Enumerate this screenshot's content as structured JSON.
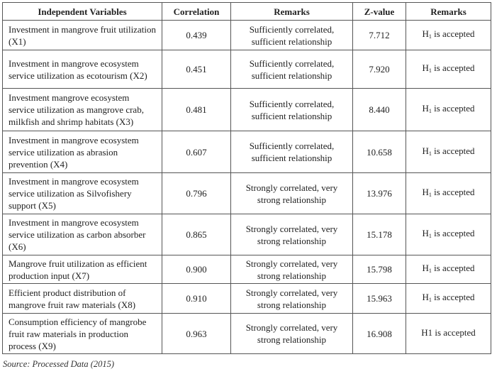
{
  "table": {
    "headers": [
      "Independent Variables",
      "Correlation",
      "Remarks",
      "Z-value",
      "Remarks"
    ],
    "rows": [
      {
        "variable": "Investment in mangrove fruit utilization (X1)",
        "correlation": "0.439",
        "remarks": "Sufficiently correlated, sufficient relationship",
        "z": "7.712",
        "h_base": "H",
        "h_sub": "1",
        "h_rest": " is accepted"
      },
      {
        "variable": "Investment in mangrove ecosystem service utilization as ecotourism (X2)",
        "correlation": "0.451",
        "remarks": "Sufficiently correlated, sufficient relationship",
        "z": "7.920",
        "h_base": "H",
        "h_sub": "1",
        "h_rest": " is accepted"
      },
      {
        "variable": "Investment mangrove ecosystem service utilization as mangrove crab, milkfish and shrimp habitats (X3)",
        "correlation": "0.481",
        "remarks": "Sufficiently correlated, sufficient relationship",
        "z": "8.440",
        "h_base": "H",
        "h_sub": "1",
        "h_rest": " is accepted"
      },
      {
        "variable": "Investment in mangrove ecosystem service utilization as abrasion prevention (X4)",
        "correlation": "0.607",
        "remarks": "Sufficiently correlated, sufficient relationship",
        "z": "10.658",
        "h_base": "H",
        "h_sub": "1",
        "h_rest": " is accepted"
      },
      {
        "variable": "Investment in mangrove ecosystem service utilization as Silvofishery support (X5)",
        "correlation": "0.796",
        "remarks": "Strongly correlated, very strong relationship",
        "z": "13.976",
        "h_base": "H",
        "h_sub": "1",
        "h_rest": " is accepted"
      },
      {
        "variable": "Investment in mangrove ecosystem service utilization as carbon absorber (X6)",
        "correlation": "0.865",
        "remarks": "Strongly correlated, very strong relationship",
        "z": "15.178",
        "h_base": "H",
        "h_sub": "1",
        "h_rest": " is accepted"
      },
      {
        "variable": "Mangrove fruit utilization as efficient production input (X7)",
        "correlation": "0.900",
        "remarks": "Strongly correlated, very strong relationship",
        "z": "15.798",
        "h_base": "H",
        "h_sub": "1",
        "h_rest": " is accepted"
      },
      {
        "variable": "Efficient product distribution of mangrove fruit raw materials (X8)",
        "correlation": "0.910",
        "remarks": "Strongly correlated, very strong relationship",
        "z": "15.963",
        "h_base": "H",
        "h_sub": "1",
        "h_rest": " is accepted"
      },
      {
        "variable": "Consumption efficiency of mangrobe fruit raw materials in production process (X9)",
        "correlation": "0.963",
        "remarks": "Strongly correlated, very strong relationship",
        "z": "16.908",
        "h_base": "H1 is accepted",
        "h_sub": "",
        "h_rest": ""
      }
    ]
  },
  "source": "Source: Processed Data (2015)"
}
